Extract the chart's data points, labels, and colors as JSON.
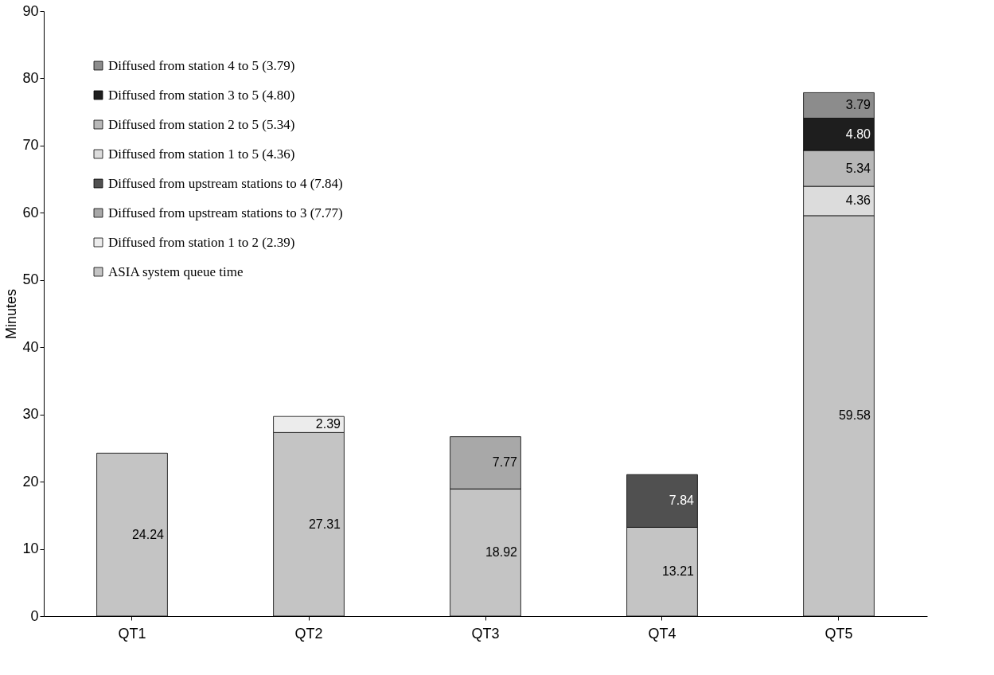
{
  "chart_data": {
    "type": "bar",
    "stacked": true,
    "ylabel": "Minutes",
    "categories": [
      "QT1",
      "QT2",
      "QT3",
      "QT4",
      "QT5"
    ],
    "ylim": [
      0,
      90
    ],
    "yticks": [
      0,
      10,
      20,
      30,
      40,
      50,
      60,
      70,
      80,
      90
    ],
    "grid": false,
    "legend": "top left",
    "series": [
      {
        "name": "ASIA system queue time",
        "color": "#c4c4c4",
        "values": [
          24.24,
          27.31,
          18.92,
          13.21,
          59.58
        ],
        "value_labels": [
          "24.24",
          "27.31",
          "18.92",
          "13.21",
          "59.58"
        ]
      },
      {
        "name": "Diffused from station 1 to 2 (2.39)",
        "color": "#ececec",
        "values": [
          null,
          2.39,
          null,
          null,
          null
        ],
        "value_labels": [
          null,
          "2.39",
          null,
          null,
          null
        ]
      },
      {
        "name": "Diffused from upstream stations to 3 (7.77)",
        "color": "#a8a8a8",
        "values": [
          null,
          null,
          7.77,
          null,
          null
        ],
        "value_labels": [
          null,
          null,
          "7.77",
          null,
          null
        ]
      },
      {
        "name": "Diffused from upstream stations to 4 (7.84)",
        "color": "#505050",
        "values": [
          null,
          null,
          null,
          7.84,
          null
        ],
        "value_labels": [
          null,
          null,
          null,
          "7.84",
          null
        ]
      },
      {
        "name": "Diffused from station 1 to 5 (4.36)",
        "color": "#dcdcdc",
        "values": [
          null,
          null,
          null,
          null,
          4.36
        ],
        "value_labels": [
          null,
          null,
          null,
          null,
          "4.36"
        ]
      },
      {
        "name": "Diffused from station 2 to 5 (5.34)",
        "color": "#b8b8b8",
        "values": [
          null,
          null,
          null,
          null,
          5.34
        ],
        "value_labels": [
          null,
          null,
          null,
          null,
          "5.34"
        ]
      },
      {
        "name": "Diffused from station 3 to 5 (4.80)",
        "color": "#1e1e1e",
        "values": [
          null,
          null,
          null,
          null,
          4.8
        ],
        "value_labels": [
          null,
          null,
          null,
          null,
          "4.80"
        ]
      },
      {
        "name": "Diffused from station 4 to 5 (3.79)",
        "color": "#8c8c8c",
        "values": [
          null,
          null,
          null,
          null,
          3.79
        ],
        "value_labels": [
          null,
          null,
          null,
          null,
          "3.79"
        ]
      }
    ]
  }
}
